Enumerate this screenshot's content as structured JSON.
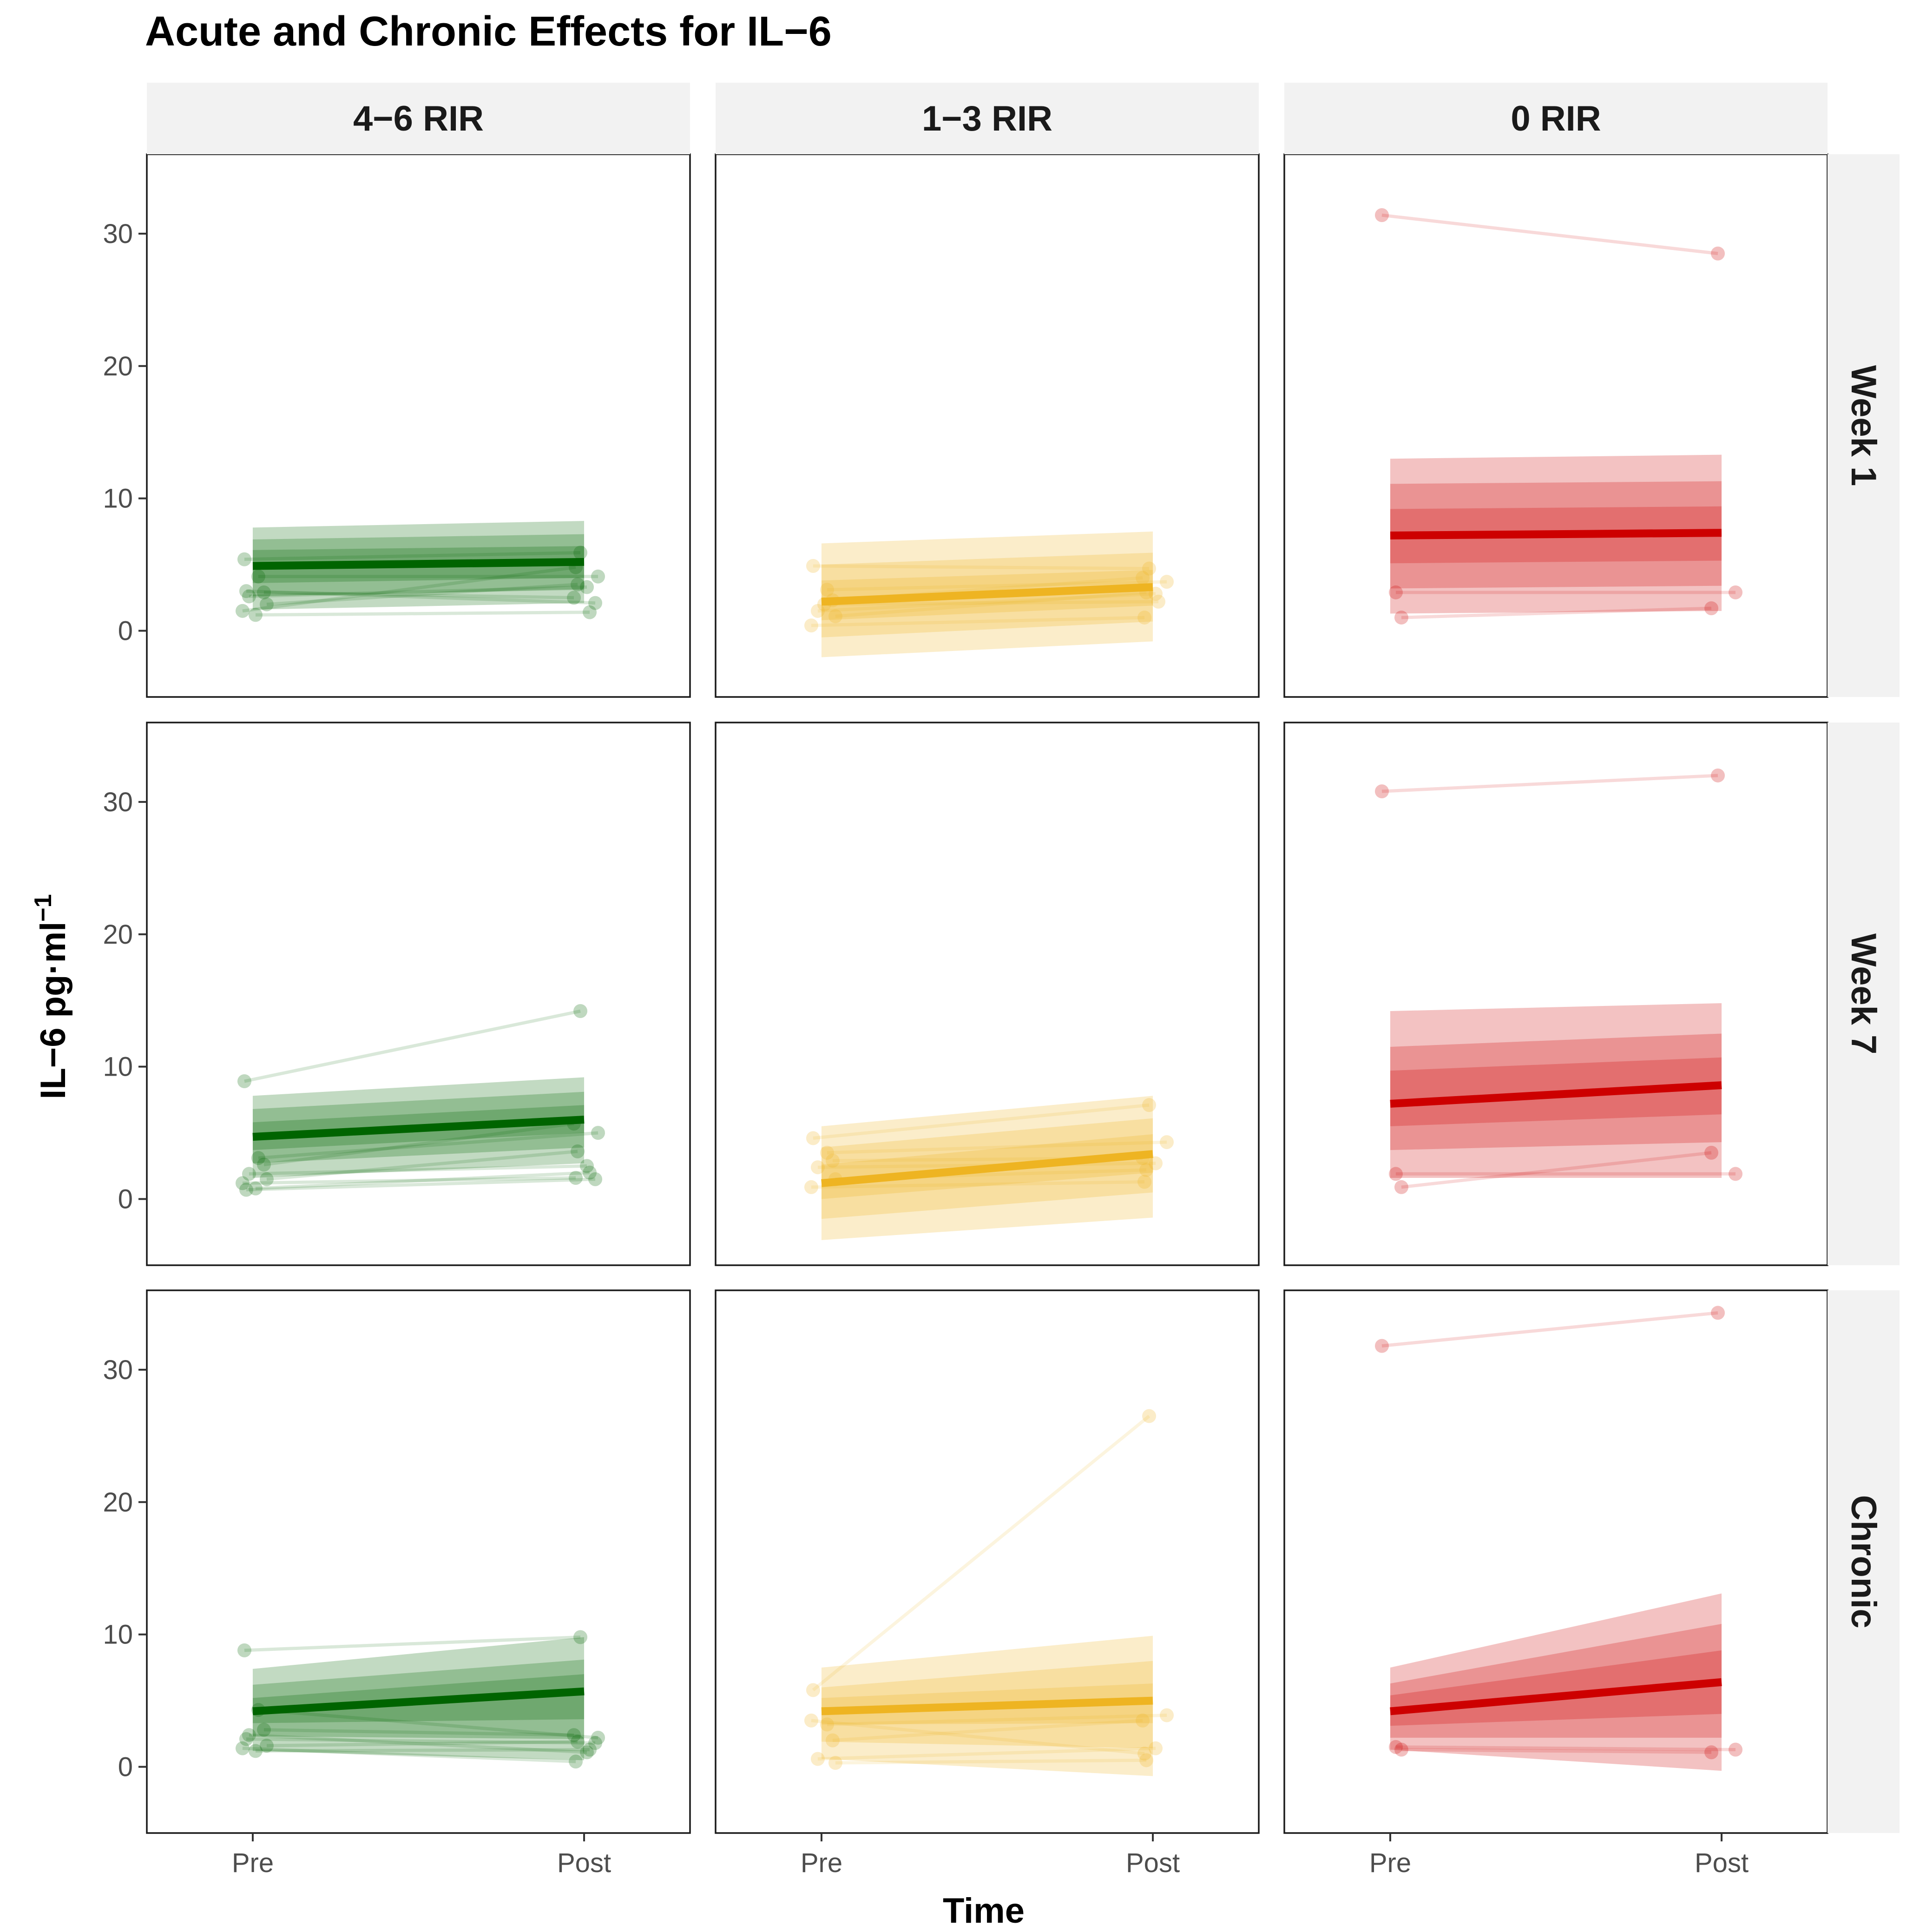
{
  "colors": {
    "green": "#006400",
    "yellow": "#EEB422",
    "red": "#CD0000",
    "strip_bg": "#F2F2F2",
    "axis_text": "#4D4D4D",
    "axis_title": "#000000"
  },
  "chart_data": {
    "type": "faceted line + interval bands",
    "title": "Acute and Chronic Effects for IL−6",
    "xlabel": "Time",
    "ylabel": "IL−6 pg·ml",
    "ylabel_sup": "−1",
    "x_categories": [
      "Pre",
      "Post"
    ],
    "ylim": [
      -5,
      36
    ],
    "yticks": [
      0,
      10,
      20,
      30
    ],
    "y_tick_labels": [
      "0",
      "10",
      "20",
      "30"
    ],
    "columns": [
      "4−6 RIR",
      "1−3 RIR",
      "0 RIR"
    ],
    "rows": [
      "Week 1",
      "Week 7",
      "Chronic"
    ],
    "panels": [
      {
        "row": 0,
        "col": 0,
        "color": "green",
        "mean": [
          4.9,
          5.2
        ],
        "bands": [
          [
            [
              1.6,
              7.8
            ],
            [
              2.1,
              8.3
            ]
          ],
          [
            [
              2.6,
              6.9
            ],
            [
              3.1,
              7.3
            ]
          ],
          [
            [
              3.6,
              6.1
            ],
            [
              4.0,
              6.4
            ]
          ]
        ],
        "subjects": [
          [
            5.4,
            5.9
          ],
          [
            4.1,
            4.1
          ],
          [
            2.9,
            2.5
          ],
          [
            2.6,
            3.3
          ],
          [
            2.0,
            3.5
          ],
          [
            1.5,
            4.8
          ],
          [
            1.2,
            1.4
          ],
          [
            3.0,
            2.1
          ]
        ]
      },
      {
        "row": 0,
        "col": 1,
        "color": "yellow",
        "mean": [
          2.2,
          3.3
        ],
        "bands": [
          [
            [
              -2.0,
              6.6
            ],
            [
              -0.8,
              7.5
            ]
          ],
          [
            [
              -0.5,
              5.0
            ],
            [
              0.7,
              5.9
            ]
          ],
          [
            [
              0.8,
              3.8
            ],
            [
              1.9,
              4.6
            ]
          ]
        ],
        "subjects": [
          [
            4.9,
            4.7
          ],
          [
            3.1,
            3.7
          ],
          [
            2.3,
            4.0
          ],
          [
            1.5,
            2.8
          ],
          [
            1.1,
            2.9
          ],
          [
            0.4,
            1.0
          ],
          [
            2.0,
            2.2
          ]
        ]
      },
      {
        "row": 0,
        "col": 2,
        "color": "red",
        "mean": [
          7.2,
          7.4
        ],
        "bands": [
          [
            [
              1.3,
              13.0
            ],
            [
              1.5,
              13.3
            ]
          ],
          [
            [
              3.2,
              11.1
            ],
            [
              3.4,
              11.3
            ]
          ],
          [
            [
              5.1,
              9.2
            ],
            [
              5.3,
              9.4
            ]
          ]
        ],
        "subjects": [
          [
            31.4,
            28.5
          ],
          [
            2.9,
            2.9
          ],
          [
            1.0,
            1.7
          ]
        ]
      },
      {
        "row": 1,
        "col": 0,
        "color": "green",
        "mean": [
          4.7,
          6.0
        ],
        "bands": [
          [
            [
              1.6,
              7.8
            ],
            [
              2.7,
              9.2
            ]
          ],
          [
            [
              2.7,
              6.8
            ],
            [
              3.9,
              8.1
            ]
          ],
          [
            [
              3.7,
              5.8
            ],
            [
              5.0,
              7.1
            ]
          ]
        ],
        "subjects": [
          [
            8.9,
            14.2
          ],
          [
            3.1,
            5.0
          ],
          [
            2.6,
            5.7
          ],
          [
            1.9,
            2.5
          ],
          [
            1.5,
            3.6
          ],
          [
            1.2,
            1.6
          ],
          [
            0.8,
            2.0
          ],
          [
            0.7,
            1.5
          ]
        ]
      },
      {
        "row": 1,
        "col": 1,
        "color": "yellow",
        "mean": [
          1.2,
          3.4
        ],
        "bands": [
          [
            [
              -3.1,
              5.5
            ],
            [
              -1.4,
              7.8
            ]
          ],
          [
            [
              -1.5,
              3.9
            ],
            [
              0.5,
              6.1
            ]
          ],
          [
            [
              0.0,
              2.6
            ],
            [
              2.0,
              4.9
            ]
          ]
        ],
        "subjects": [
          [
            4.6,
            7.1
          ],
          [
            3.5,
            4.3
          ],
          [
            2.9,
            3.1
          ],
          [
            2.4,
            2.7
          ],
          [
            1.5,
            2.2
          ],
          [
            0.9,
            1.3
          ]
        ]
      },
      {
        "row": 1,
        "col": 2,
        "color": "red",
        "mean": [
          7.2,
          8.6
        ],
        "bands": [
          [
            [
              1.6,
              14.2
            ],
            [
              1.6,
              14.8
            ]
          ],
          [
            [
              3.7,
              11.5
            ],
            [
              4.3,
              12.5
            ]
          ],
          [
            [
              5.5,
              9.7
            ],
            [
              6.4,
              10.7
            ]
          ]
        ],
        "subjects": [
          [
            30.8,
            32.0
          ],
          [
            1.9,
            1.9
          ],
          [
            0.9,
            3.5
          ]
        ]
      },
      {
        "row": 2,
        "col": 0,
        "color": "green",
        "mean": [
          4.2,
          5.7
        ],
        "bands": [
          [
            [
              1.2,
              7.4
            ],
            [
              0.5,
              9.8
            ]
          ],
          [
            [
              2.3,
              6.2
            ],
            [
              2.1,
              8.1
            ]
          ],
          [
            [
              3.3,
              5.2
            ],
            [
              3.6,
              7.0
            ]
          ]
        ],
        "subjects": [
          [
            8.8,
            9.8
          ],
          [
            4.3,
            2.2
          ],
          [
            2.8,
            2.4
          ],
          [
            2.4,
            1.1
          ],
          [
            1.6,
            1.9
          ],
          [
            1.4,
            0.4
          ],
          [
            1.2,
            1.3
          ],
          [
            2.1,
            1.8
          ]
        ]
      },
      {
        "row": 2,
        "col": 1,
        "color": "yellow",
        "mean": [
          4.2,
          5.0
        ],
        "bands": [
          [
            [
              0.6,
              7.5
            ],
            [
              -0.7,
              9.9
            ]
          ],
          [
            [
              1.9,
              6.0
            ],
            [
              1.4,
              8.0
            ]
          ],
          [
            [
              3.2,
              5.2
            ],
            [
              3.3,
              6.3
            ]
          ]
        ],
        "subjects": [
          [
            5.8,
            26.5
          ],
          [
            3.2,
            3.9
          ],
          [
            2.0,
            3.5
          ],
          [
            0.6,
            1.4
          ],
          [
            0.3,
            0.5
          ],
          [
            3.5,
            1.0
          ]
        ]
      },
      {
        "row": 2,
        "col": 2,
        "color": "red",
        "mean": [
          4.2,
          6.4
        ],
        "bands": [
          [
            [
              1.3,
              7.5
            ],
            [
              -0.3,
              13.1
            ]
          ],
          [
            [
              2.2,
              6.3
            ],
            [
              2.2,
              10.8
            ]
          ],
          [
            [
              3.1,
              5.4
            ],
            [
              4.0,
              8.8
            ]
          ]
        ],
        "subjects": [
          [
            31.8,
            34.3
          ],
          [
            1.5,
            1.3
          ],
          [
            1.3,
            1.1
          ]
        ]
      }
    ]
  }
}
